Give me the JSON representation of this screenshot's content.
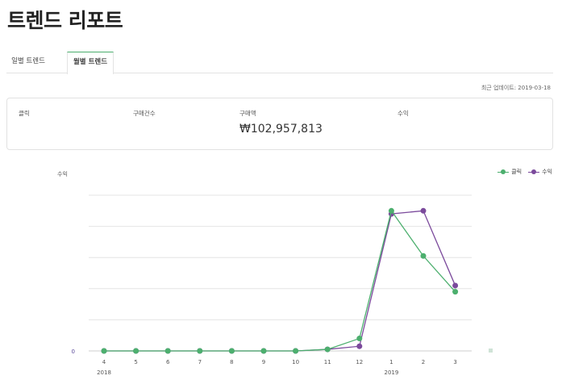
{
  "page": {
    "title": "트렌드 리포트"
  },
  "tabs": [
    {
      "label": "일별 트렌드",
      "active": false
    },
    {
      "label": "월별 트렌드",
      "active": true
    }
  ],
  "update": {
    "text": "최근 업데이트: 2019-03-18"
  },
  "summary": {
    "metrics": [
      {
        "label": "클릭",
        "value": ""
      },
      {
        "label": "구매건수",
        "value": ""
      },
      {
        "label": "구매액",
        "value": "₩102,957,813"
      },
      {
        "label": "수익",
        "value": ""
      }
    ]
  },
  "colors": {
    "click": "#4caf6e",
    "revenue": "#7b4a9c",
    "tab_accent": "#4cae6e"
  },
  "chart_data": {
    "type": "line",
    "categories": [
      "4",
      "5",
      "6",
      "7",
      "8",
      "9",
      "10",
      "11",
      "12",
      "1",
      "2",
      "3"
    ],
    "year_labels": [
      {
        "label": "2018",
        "at": "4"
      },
      {
        "label": "2019",
        "at": "1"
      }
    ],
    "ylabel": "수익",
    "y_tick_labels": [
      "0"
    ],
    "ylim": [
      0,
      100
    ],
    "grid": true,
    "legend": "top-right",
    "series": [
      {
        "name": "클릭",
        "color": "#4caf6e",
        "values": [
          0,
          0,
          0,
          0,
          0,
          0,
          0,
          1,
          8,
          90,
          61,
          38
        ]
      },
      {
        "name": "수익",
        "color": "#7b4a9c",
        "values": [
          0,
          0,
          0,
          0,
          0,
          0,
          0,
          1,
          3,
          88,
          90,
          42
        ]
      }
    ]
  }
}
